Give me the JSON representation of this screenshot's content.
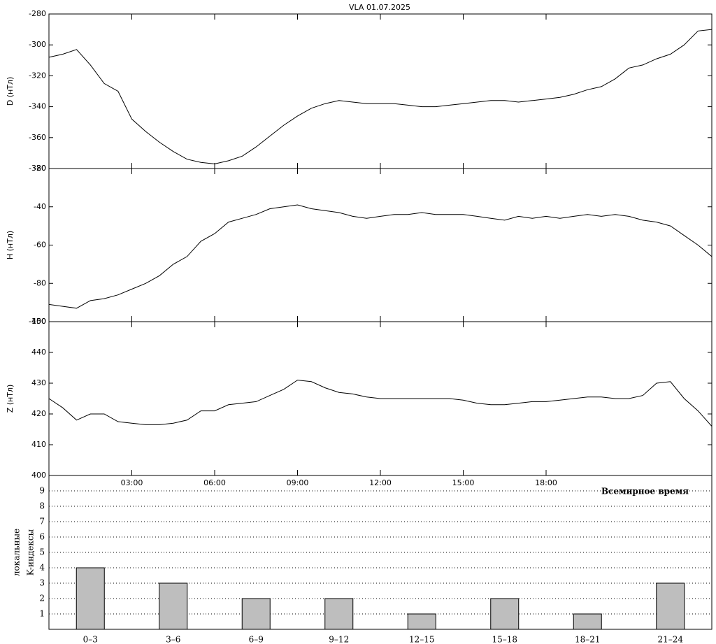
{
  "chart_data": [
    {
      "type": "line",
      "title": "VLA   01.07.2025",
      "ylabel": "D (нТл)",
      "x": [
        0,
        0.5,
        1,
        1.5,
        2,
        2.5,
        3,
        3.5,
        4,
        4.5,
        5,
        5.5,
        6,
        6.5,
        7,
        7.5,
        8,
        8.5,
        9,
        9.5,
        10,
        10.5,
        11,
        11.5,
        12,
        12.5,
        13,
        13.5,
        14,
        14.5,
        15,
        15.5,
        16,
        16.5,
        17,
        17.5,
        18,
        18.5,
        19,
        19.5,
        20,
        20.5,
        21,
        21.5,
        22,
        22.5,
        23,
        23.5,
        24
      ],
      "series": [
        {
          "color": "#000000",
          "values": [
            -308,
            -306,
            -303,
            -313,
            -325,
            -330,
            -348,
            -356,
            -363,
            -369,
            -374,
            -376,
            -377,
            -375,
            -372,
            -366,
            -359,
            -352,
            -346,
            -341,
            -338,
            -336,
            -337,
            -338,
            -338,
            -338,
            -339,
            -340,
            -340,
            -339,
            -338,
            -337,
            -336,
            -336,
            -337,
            -336,
            -335,
            -334,
            -332,
            -329,
            -327,
            -322,
            -315,
            -313,
            -309,
            -306,
            -300,
            -291,
            -290
          ]
        }
      ],
      "xlim": [
        0,
        24
      ],
      "ylim": [
        -380,
        -280
      ],
      "yticks": [
        -380,
        -360,
        -340,
        -320,
        -300,
        -280
      ]
    },
    {
      "type": "line",
      "ylabel": "H (нТл)",
      "x": [
        0,
        0.5,
        1,
        1.5,
        2,
        2.5,
        3,
        3.5,
        4,
        4.5,
        5,
        5.5,
        6,
        6.5,
        7,
        7.5,
        8,
        8.5,
        9,
        9.5,
        10,
        10.5,
        11,
        11.5,
        12,
        12.5,
        13,
        13.5,
        14,
        14.5,
        15,
        15.5,
        16,
        16.5,
        17,
        17.5,
        18,
        18.5,
        19,
        19.5,
        20,
        20.5,
        21,
        21.5,
        22,
        22.5,
        23,
        23.5,
        24
      ],
      "series": [
        {
          "color": "#000000",
          "values": [
            -91,
            -92,
            -93,
            -89,
            -88,
            -86,
            -83,
            -80,
            -76,
            -70,
            -66,
            -58,
            -54,
            -48,
            -46,
            -44,
            -41,
            -40,
            -39,
            -41,
            -42,
            -43,
            -45,
            -46,
            -45,
            -44,
            -44,
            -43,
            -44,
            -44,
            -44,
            -45,
            -46,
            -47,
            -45,
            -46,
            -45,
            -46,
            -45,
            -44,
            -45,
            -44,
            -45,
            -47,
            -48,
            -50,
            -55,
            -60,
            -66
          ]
        }
      ],
      "xlim": [
        0,
        24
      ],
      "ylim": [
        -100,
        -20
      ],
      "yticks": [
        -100,
        -80,
        -60,
        -40,
        -20
      ]
    },
    {
      "type": "line",
      "ylabel": "Z (нТл)",
      "x": [
        0,
        0.5,
        1,
        1.5,
        2,
        2.5,
        3,
        3.5,
        4,
        4.5,
        5,
        5.5,
        6,
        6.5,
        7,
        7.5,
        8,
        8.5,
        9,
        9.5,
        10,
        10.5,
        11,
        11.5,
        12,
        12.5,
        13,
        13.5,
        14,
        14.5,
        15,
        15.5,
        16,
        16.5,
        17,
        17.5,
        18,
        18.5,
        19,
        19.5,
        20,
        20.5,
        21,
        21.5,
        22,
        22.5,
        23,
        23.5,
        24
      ],
      "series": [
        {
          "color": "#000000",
          "values": [
            425,
            422,
            418,
            420,
            420,
            417.5,
            417,
            416.5,
            416.5,
            417,
            418,
            421,
            421,
            423,
            423.5,
            424,
            426,
            428,
            431,
            430.5,
            428.5,
            427,
            426.5,
            425.5,
            425,
            425,
            425,
            425,
            425,
            425,
            424.5,
            423.5,
            423,
            423,
            423.5,
            424,
            424,
            424.5,
            425,
            425.5,
            425.5,
            425,
            425,
            426,
            430,
            430.5,
            425,
            421,
            416
          ]
        }
      ],
      "xlim": [
        0,
        24
      ],
      "ylim": [
        400,
        450
      ],
      "yticks": [
        400,
        410,
        420,
        430,
        440,
        450
      ],
      "xticks": [
        {
          "value": 3,
          "label": "03:00"
        },
        {
          "value": 6,
          "label": "06:00"
        },
        {
          "value": 9,
          "label": "09:00"
        },
        {
          "value": 12,
          "label": "12:00"
        },
        {
          "value": 15,
          "label": "15:00"
        },
        {
          "value": 18,
          "label": "18:00"
        }
      ],
      "xlabel": "Всемирное время"
    },
    {
      "type": "bar",
      "ylabel_lines": [
        "локальные",
        "K-индексы"
      ],
      "categories": [
        "0–3",
        "3–6",
        "6–9",
        "9–12",
        "12–15",
        "15–18",
        "18–21",
        "21–24"
      ],
      "values": [
        4,
        3,
        2,
        2,
        1,
        2,
        1,
        3
      ],
      "color": "#bebebe",
      "ylim": [
        0,
        10
      ],
      "yticks": [
        1,
        2,
        3,
        4,
        5,
        6,
        7,
        8,
        9
      ],
      "grid": "dotted"
    }
  ]
}
